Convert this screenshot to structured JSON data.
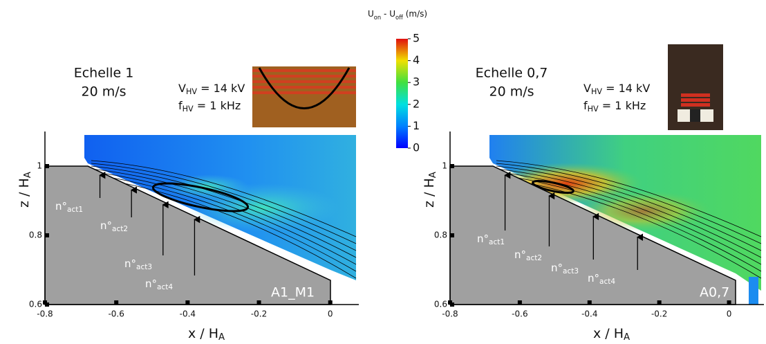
{
  "colorbar": {
    "label": [
      "U",
      "on",
      " - U",
      "off",
      " (m/s)"
    ],
    "lim": [
      0,
      5
    ],
    "ticks": [
      0,
      1,
      2,
      3,
      4,
      5
    ]
  },
  "chart_data": [
    {
      "type": "flowfield",
      "title": [
        "Echelle 1",
        "20 m/s"
      ],
      "params": [
        [
          "V",
          "HV",
          " = 14 kV"
        ],
        [
          "f",
          "HV",
          " = 1 kHz"
        ]
      ],
      "xlabel": [
        "x / H",
        "A"
      ],
      "ylabel": [
        "z / H",
        "A"
      ],
      "xlim": [
        -0.8,
        0.08
      ],
      "ylim": [
        0.6,
        1.1
      ],
      "xticks": [
        -0.8,
        -0.6,
        -0.4,
        -0.2,
        0
      ],
      "yticks": [
        0.6,
        0.8,
        1
      ],
      "actuators": [
        [
          "n°",
          "act1"
        ],
        [
          "n°",
          "act2"
        ],
        [
          "n°",
          "act3"
        ],
        [
          "n°",
          "act4"
        ]
      ],
      "model": "A1_M1"
    },
    {
      "type": "flowfield",
      "title": [
        "Echelle 0,7",
        "20 m/s"
      ],
      "params": [
        [
          "V",
          "HV",
          " = 14 kV"
        ],
        [
          "f",
          "HV",
          " = 1 kHz"
        ]
      ],
      "xlabel": [
        "x / H",
        "A"
      ],
      "ylabel": [
        "z / H",
        "A"
      ],
      "xlim": [
        -0.8,
        0.1
      ],
      "ylim": [
        0.6,
        1.1
      ],
      "xticks": [
        -0.8,
        -0.6,
        -0.4,
        -0.2,
        0
      ],
      "yticks": [
        0.6,
        0.8,
        1
      ],
      "actuators": [
        [
          "n°",
          "act1"
        ],
        [
          "n°",
          "act2"
        ],
        [
          "n°",
          "act3"
        ],
        [
          "n°",
          "act4"
        ]
      ],
      "model": "A0,7"
    }
  ]
}
